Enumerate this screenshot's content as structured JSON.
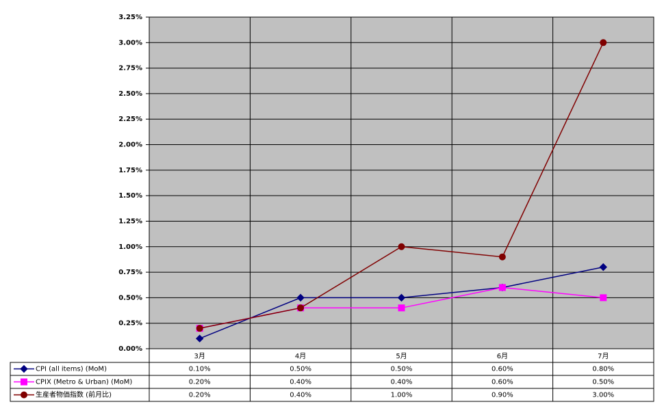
{
  "chart_data": {
    "type": "line",
    "categories": [
      "3月",
      "4月",
      "5月",
      "6月",
      "7月"
    ],
    "series": [
      {
        "name": "CPI (all items) (MoM)",
        "color": "#000080",
        "marker": "diamond",
        "values": [
          0.1,
          0.5,
          0.5,
          0.6,
          0.8
        ],
        "value_labels": [
          "0.10%",
          "0.50%",
          "0.50%",
          "0.60%",
          "0.80%"
        ]
      },
      {
        "name": "CPIX (Metro & Urban) (MoM)",
        "color": "#ff00ff",
        "marker": "square",
        "values": [
          0.2,
          0.4,
          0.4,
          0.6,
          0.5
        ],
        "value_labels": [
          "0.20%",
          "0.40%",
          "0.40%",
          "0.60%",
          "0.50%"
        ]
      },
      {
        "name": "生産者物価指数 (前月比)",
        "color": "#800000",
        "marker": "circle",
        "values": [
          0.2,
          0.4,
          1.0,
          0.9,
          3.0
        ],
        "value_labels": [
          "0.20%",
          "0.40%",
          "1.00%",
          "0.90%",
          "3.00%"
        ]
      }
    ],
    "ylim": [
      0,
      3.25
    ],
    "yticks": [
      {
        "value": 0,
        "label": "0.00%"
      },
      {
        "value": 0.25,
        "label": "0.25%"
      },
      {
        "value": 0.5,
        "label": "0.50%"
      },
      {
        "value": 0.75,
        "label": "0.75%"
      },
      {
        "value": 1,
        "label": "1.00%"
      },
      {
        "value": 1.25,
        "label": "1.25%"
      },
      {
        "value": 1.5,
        "label": "1.50%"
      },
      {
        "value": 1.75,
        "label": "1.75%"
      },
      {
        "value": 2,
        "label": "2.00%"
      },
      {
        "value": 2.25,
        "label": "2.25%"
      },
      {
        "value": 2.5,
        "label": "2.50%"
      },
      {
        "value": 2.75,
        "label": "2.75%"
      },
      {
        "value": 3,
        "label": "3.00%"
      },
      {
        "value": 3.25,
        "label": "3.25%"
      }
    ],
    "grid": true,
    "plot_background": "#c0c0c0",
    "data_table": true
  }
}
